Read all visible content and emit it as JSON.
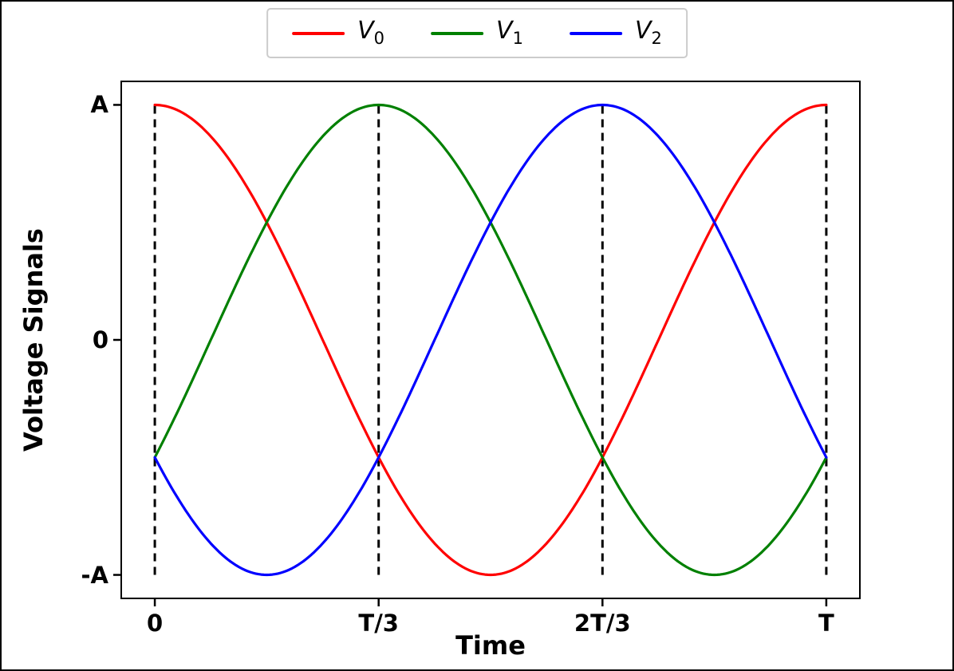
{
  "figure": {
    "background_color": "#ffffff",
    "frame_color": "#000000"
  },
  "legend": {
    "position": "upper center, outside axes",
    "border_color": "#cccccc",
    "entries": [
      {
        "label_main": "V",
        "label_sub": "0",
        "color": "#ff0000"
      },
      {
        "label_main": "V",
        "label_sub": "1",
        "color": "#008000"
      },
      {
        "label_main": "V",
        "label_sub": "2",
        "color": "#0000ff"
      }
    ]
  },
  "chart_data": {
    "type": "line",
    "title": "",
    "xlabel": "Time",
    "ylabel": "Voltage Signals",
    "x_unit": "T (signal period)",
    "y_unit": "A (signal amplitude)",
    "xlim": [
      -0.05,
      1.05
    ],
    "ylim": [
      -1.1,
      1.1
    ],
    "grid": false,
    "x_ticks": [
      {
        "value": 0.0,
        "label": "0"
      },
      {
        "value": 0.33333,
        "label": "T/3"
      },
      {
        "value": 0.66667,
        "label": "2T/3"
      },
      {
        "value": 1.0,
        "label": "T"
      }
    ],
    "y_ticks": [
      {
        "value": 1.0,
        "label": "A"
      },
      {
        "value": 0.0,
        "label": "0"
      },
      {
        "value": -1.0,
        "label": "-A"
      }
    ],
    "series": [
      {
        "name": "V_0",
        "color": "#ff0000",
        "line_width": 3.2,
        "formula": "A*cos(2*pi*t/T)",
        "amplitude": 1,
        "phase_deg": 0,
        "key_points_t": [
          0,
          0.1667,
          0.3333,
          0.5,
          0.6667,
          0.8333,
          1
        ],
        "key_points_v": [
          1,
          0.5,
          -0.5,
          -1,
          -0.5,
          0.5,
          1
        ]
      },
      {
        "name": "V_1",
        "color": "#008000",
        "line_width": 3.2,
        "formula": "A*cos(2*pi*t/T - 2*pi/3)",
        "amplitude": 1,
        "phase_deg": -120,
        "key_points_t": [
          0,
          0.1667,
          0.3333,
          0.5,
          0.6667,
          0.8333,
          1
        ],
        "key_points_v": [
          -0.5,
          0.5,
          1,
          0.5,
          -0.5,
          -1,
          -0.5
        ]
      },
      {
        "name": "V_2",
        "color": "#0000ff",
        "line_width": 3.2,
        "formula": "A*cos(2*pi*t/T - 4*pi/3)",
        "amplitude": 1,
        "phase_deg": -240,
        "key_points_t": [
          0,
          0.1667,
          0.3333,
          0.5,
          0.6667,
          0.8333,
          1
        ],
        "key_points_v": [
          -0.5,
          -1,
          -0.5,
          0.5,
          1,
          0.5,
          -0.5
        ]
      }
    ],
    "vlines": {
      "x_values": [
        0.0,
        0.33333,
        0.66667,
        1.0
      ],
      "color": "#000000",
      "line_style": "dashed",
      "line_width": 3,
      "span": [
        -1,
        1
      ]
    }
  }
}
